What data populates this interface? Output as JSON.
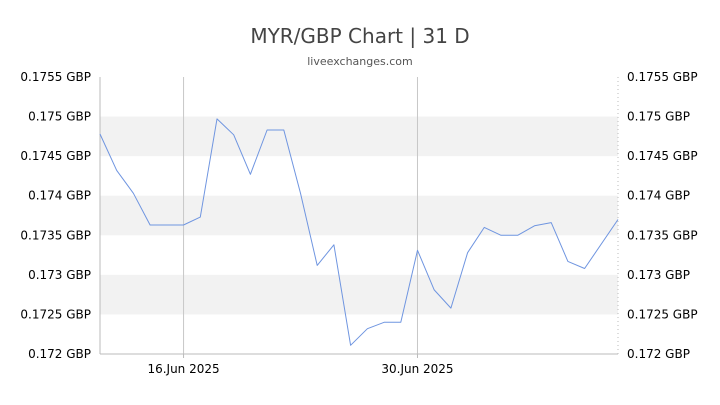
{
  "chart_data": {
    "type": "line",
    "title": "MYR/GBP Chart | 31 D",
    "subtitle": "liveexchanges.com",
    "xlabel": "",
    "ylabel": "",
    "ylim": [
      0.172,
      0.1755
    ],
    "yticks": [
      0.172,
      0.1725,
      0.173,
      0.1735,
      0.174,
      0.1745,
      0.175,
      0.1755
    ],
    "ytick_labels": [
      "0.172 GBP",
      "0.1725 GBP",
      "0.173 GBP",
      "0.1735 GBP",
      "0.174 GBP",
      "0.1745 GBP",
      "0.175 GBP",
      "0.1755 GBP"
    ],
    "xticks": [
      {
        "date": "2025-06-16",
        "label": "16.Jun 2025"
      },
      {
        "date": "2025-06-30",
        "label": "30.Jun 2025"
      }
    ],
    "x_range": [
      "2025-06-11",
      "2025-07-12"
    ],
    "grid": "horizontal bands, vertical lines at x ticks",
    "series": [
      {
        "color": "#6f95e0",
        "points": [
          {
            "x": "2025-06-11",
            "y": 0.17478
          },
          {
            "x": "2025-06-12",
            "y": 0.17432
          },
          {
            "x": "2025-06-13",
            "y": 0.17403
          },
          {
            "x": "2025-06-14",
            "y": 0.17363
          },
          {
            "x": "2025-06-15",
            "y": 0.17363
          },
          {
            "x": "2025-06-16",
            "y": 0.17363
          },
          {
            "x": "2025-06-17",
            "y": 0.17373
          },
          {
            "x": "2025-06-18",
            "y": 0.17497
          },
          {
            "x": "2025-06-19",
            "y": 0.17477
          },
          {
            "x": "2025-06-20",
            "y": 0.17427
          },
          {
            "x": "2025-06-21",
            "y": 0.17483
          },
          {
            "x": "2025-06-22",
            "y": 0.17483
          },
          {
            "x": "2025-06-23",
            "y": 0.17403
          },
          {
            "x": "2025-06-24",
            "y": 0.17312
          },
          {
            "x": "2025-06-25",
            "y": 0.17338
          },
          {
            "x": "2025-06-26",
            "y": 0.17211
          },
          {
            "x": "2025-06-27",
            "y": 0.17232
          },
          {
            "x": "2025-06-28",
            "y": 0.1724
          },
          {
            "x": "2025-06-29",
            "y": 0.1724
          },
          {
            "x": "2025-06-30",
            "y": 0.17331
          },
          {
            "x": "2025-07-01",
            "y": 0.17281
          },
          {
            "x": "2025-07-02",
            "y": 0.17258
          },
          {
            "x": "2025-07-03",
            "y": 0.17328
          },
          {
            "x": "2025-07-04",
            "y": 0.1736
          },
          {
            "x": "2025-07-05",
            "y": 0.1735
          },
          {
            "x": "2025-07-06",
            "y": 0.1735
          },
          {
            "x": "2025-07-07",
            "y": 0.17362
          },
          {
            "x": "2025-07-08",
            "y": 0.17366
          },
          {
            "x": "2025-07-09",
            "y": 0.17317
          },
          {
            "x": "2025-07-10",
            "y": 0.17308
          },
          {
            "x": "2025-07-12",
            "y": 0.1737
          }
        ]
      }
    ]
  }
}
